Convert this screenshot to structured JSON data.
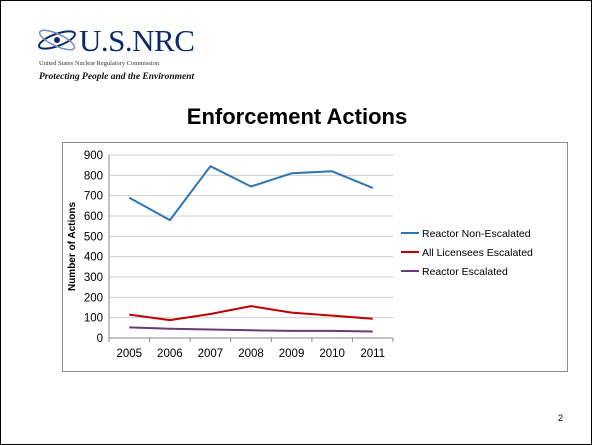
{
  "logo": {
    "wordmark": "U.S.NRC",
    "subtitle": "United States Nuclear Regulatory Commission",
    "tagline": "Protecting People and the Environment"
  },
  "slide_title": "Enforcement Actions",
  "page_number": "2",
  "colors": {
    "reactor_non_escalated": "#2e75b6",
    "all_licensees_escalated": "#c00000",
    "reactor_escalated": "#6b3a7a"
  },
  "chart_data": {
    "type": "line",
    "title": "",
    "xlabel": "",
    "ylabel": "Number of Actions",
    "categories": [
      "2005",
      "2006",
      "2007",
      "2008",
      "2009",
      "2010",
      "2011"
    ],
    "ylim": [
      0,
      900
    ],
    "yticks": [
      0,
      100,
      200,
      300,
      400,
      500,
      600,
      700,
      800,
      900
    ],
    "grid": true,
    "legend_position": "right",
    "series": [
      {
        "name": "Reactor Non-Escalated",
        "color": "#2e75b6",
        "values": [
          690,
          580,
          845,
          745,
          810,
          820,
          738
        ]
      },
      {
        "name": "All Licensees Escalated",
        "color": "#c00000",
        "values": [
          115,
          88,
          118,
          157,
          125,
          110,
          95
        ]
      },
      {
        "name": "Reactor Escalated",
        "color": "#6b3a7a",
        "values": [
          52,
          45,
          42,
          38,
          35,
          35,
          32
        ]
      }
    ]
  }
}
